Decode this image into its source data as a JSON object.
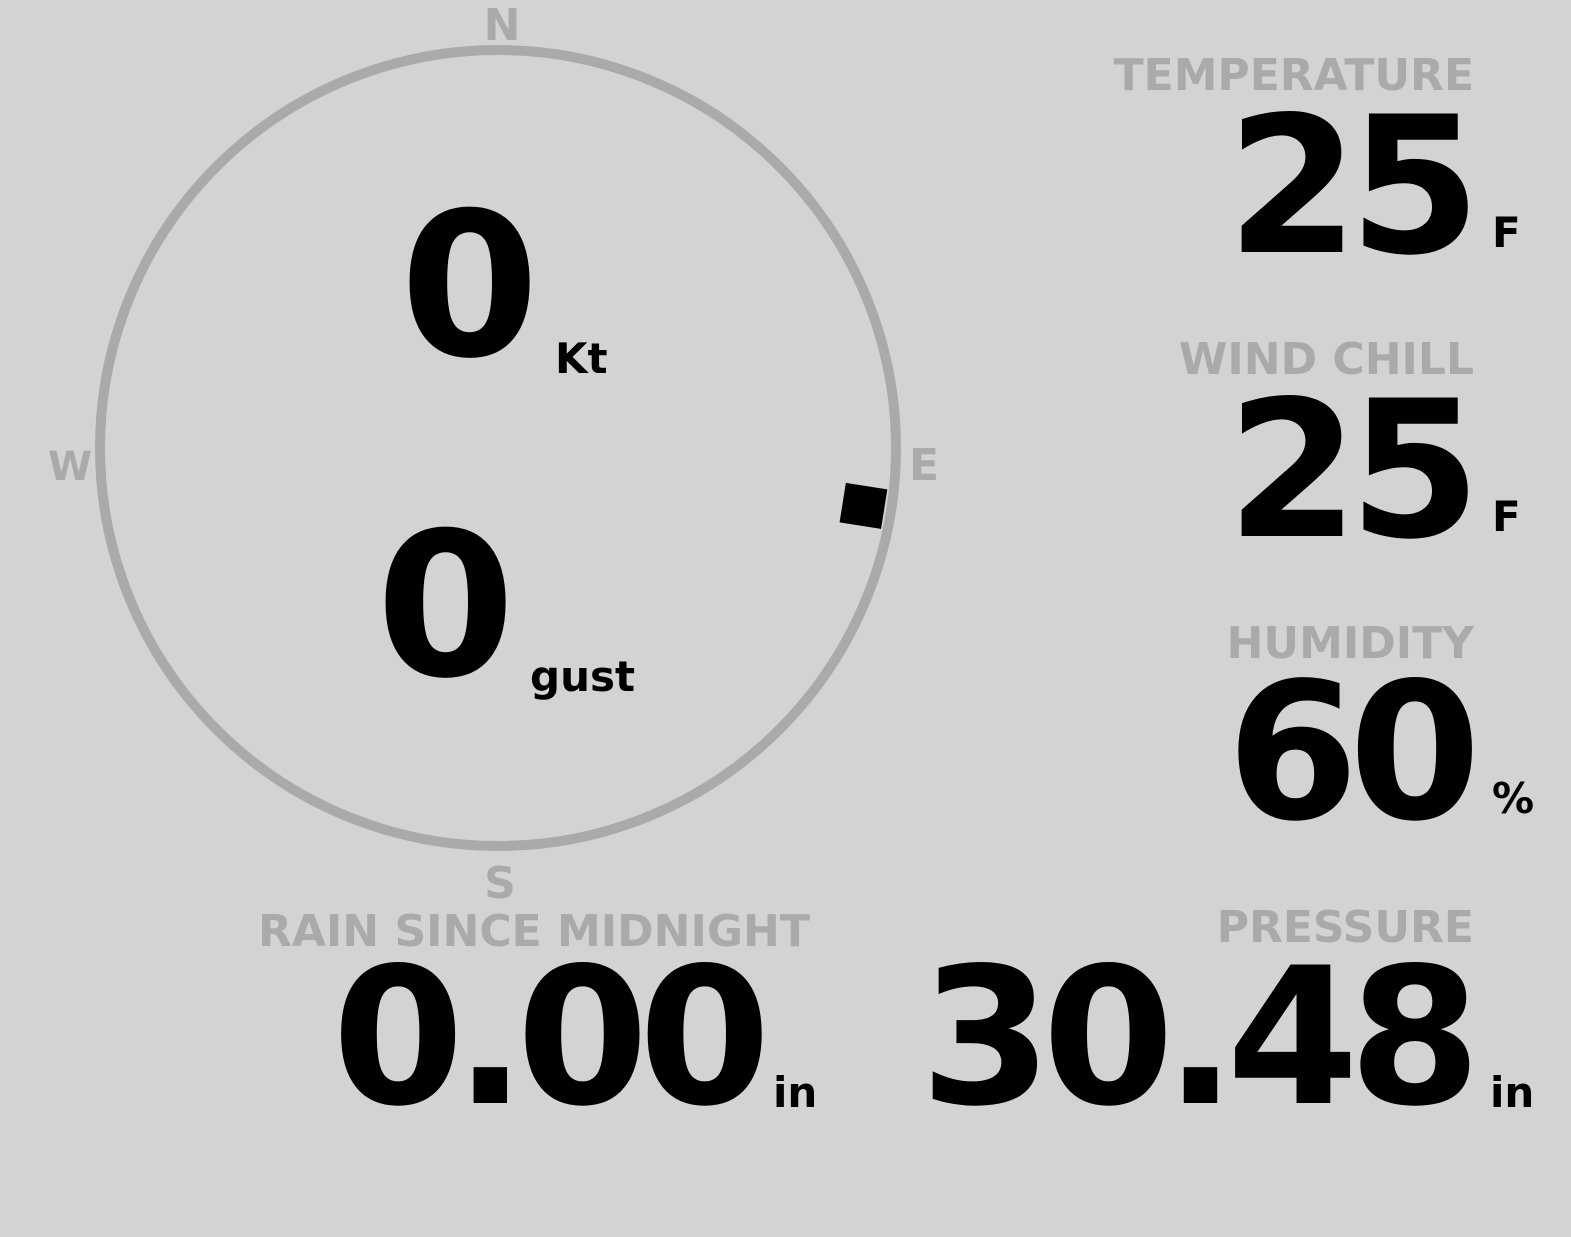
{
  "colors": {
    "background": "#d3d3d3",
    "label": "#aaaaaa",
    "value": "#000000",
    "ring": "#aaaaaa"
  },
  "wind": {
    "compass": {
      "n": "N",
      "e": "E",
      "s": "S",
      "w": "W"
    },
    "direction_deg": 99,
    "speed": "0",
    "speed_unit": "Kt",
    "gust": "0",
    "gust_unit": "gust"
  },
  "temperature": {
    "label": "TEMPERATURE",
    "value": "25",
    "unit": "F"
  },
  "wind_chill": {
    "label": "WIND CHILL",
    "value": "25",
    "unit": "F"
  },
  "humidity": {
    "label": "HUMIDITY",
    "value": "60",
    "unit": "%"
  },
  "rain": {
    "label": "RAIN SINCE MIDNIGHT",
    "value": "0.00",
    "unit": "in"
  },
  "pressure": {
    "label": "PRESSURE",
    "value": "30.48",
    "unit": "in"
  }
}
